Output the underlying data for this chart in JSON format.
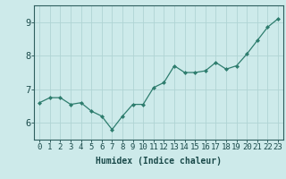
{
  "x": [
    0,
    1,
    2,
    3,
    4,
    5,
    6,
    7,
    8,
    9,
    10,
    11,
    12,
    13,
    14,
    15,
    16,
    17,
    18,
    19,
    20,
    21,
    22,
    23
  ],
  "y": [
    6.6,
    6.75,
    6.75,
    6.55,
    6.6,
    6.35,
    6.2,
    5.8,
    6.2,
    6.55,
    6.55,
    7.05,
    7.2,
    7.7,
    7.5,
    7.5,
    7.55,
    7.8,
    7.6,
    7.7,
    8.05,
    8.45,
    8.85,
    9.1
  ],
  "line_color": "#2e7d6e",
  "marker": "D",
  "marker_size": 2.0,
  "bg_color": "#cdeaea",
  "grid_color": "#b0d4d4",
  "xlabel": "Humidex (Indice chaleur)",
  "ylim": [
    5.5,
    9.5
  ],
  "xlim": [
    -0.5,
    23.5
  ],
  "yticks": [
    6,
    7,
    8,
    9
  ],
  "xticks": [
    0,
    1,
    2,
    3,
    4,
    5,
    6,
    7,
    8,
    9,
    10,
    11,
    12,
    13,
    14,
    15,
    16,
    17,
    18,
    19,
    20,
    21,
    22,
    23
  ],
  "tick_color": "#1a4a4a",
  "axis_color": "#2e5e5e",
  "xlabel_fontsize": 7,
  "tick_fontsize": 6.5,
  "ytick_fontsize": 7.5,
  "linewidth": 0.9
}
